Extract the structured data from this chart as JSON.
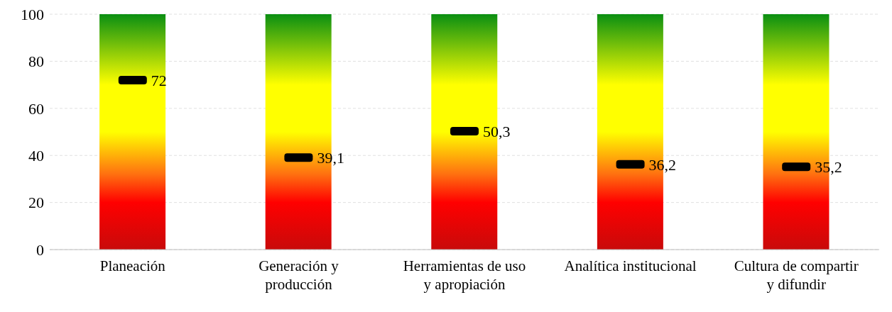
{
  "chart_data": {
    "type": "bar",
    "categories": [
      "Planeación",
      "Generación y\nproducción",
      "Herramientas de uso\ny apropiación",
      "Analítica institucional",
      "Cultura de compartir\ny difundir"
    ],
    "series": [
      {
        "color": "#ffff00",
        "values": [
          100,
          100,
          100,
          100,
          100
        ]
      },
      {
        "type": "scatter",
        "color": "#000000",
        "values": [
          72,
          39.1,
          50.3,
          36.2,
          35.2
        ],
        "value_labels": [
          "72",
          "39,1",
          "50,3",
          "36,2",
          "35,2"
        ]
      }
    ],
    "ylim": [
      0,
      100
    ],
    "yticks": [
      0,
      20,
      40,
      60,
      80,
      100
    ],
    "grid": "y",
    "marker": "square"
  }
}
